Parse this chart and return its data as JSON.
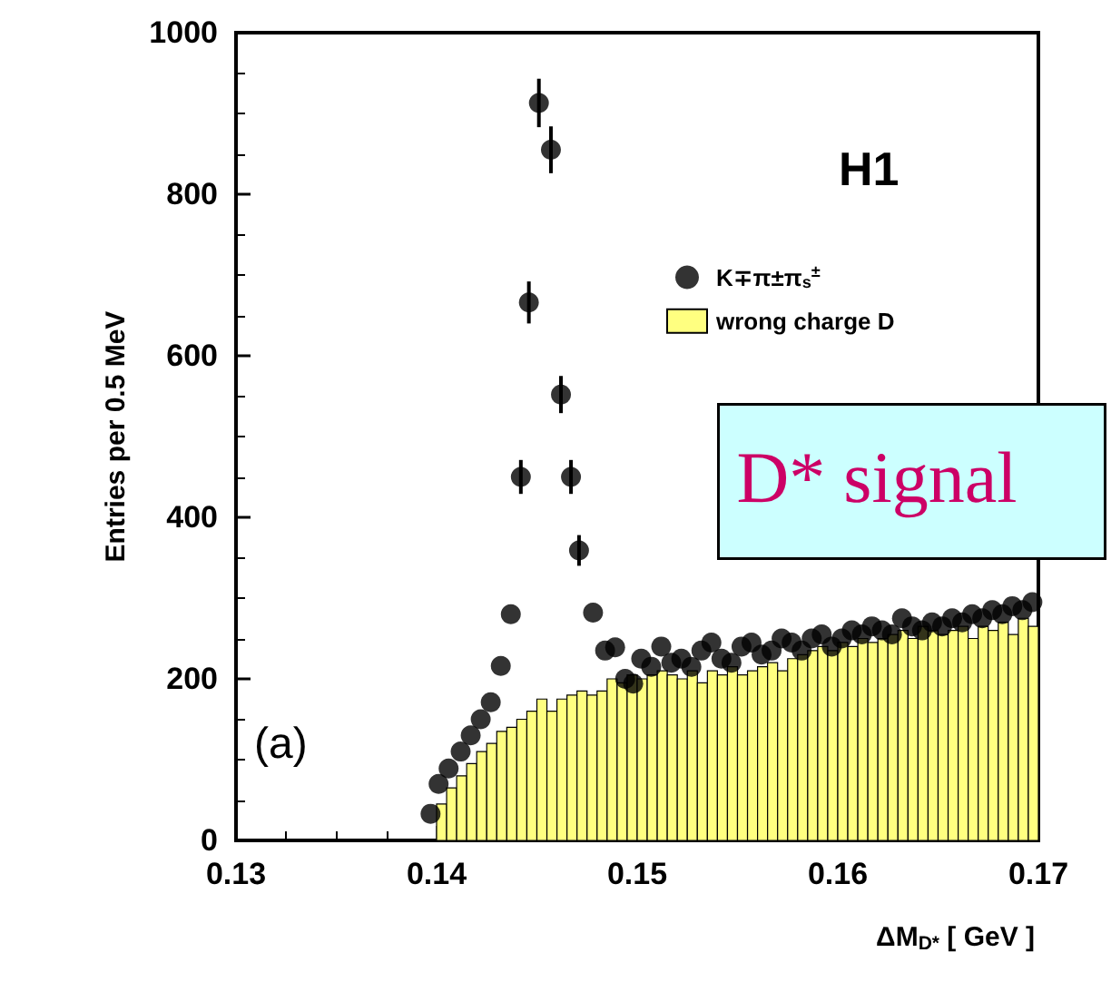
{
  "chart_data": {
    "type": "scatter",
    "xlabel": "ΔM$_{D*}$ [ GeV ]",
    "ylabel": "Entries per 0.5 MeV",
    "annotations": [
      "H1",
      "(a)",
      "D* signal"
    ],
    "xlim": [
      0.13,
      0.17
    ],
    "xticks": [
      0.13,
      0.14,
      0.15,
      0.16,
      0.17
    ],
    "ylim": [
      0,
      1000
    ],
    "yticks": [
      0,
      200,
      400,
      600,
      800,
      1000
    ],
    "grid": false,
    "legend": "top right",
    "marker": "circle",
    "series": [
      {
        "name": "K∓π±π$_{s}$$^{±}$",
        "color": "#000000",
        "x": [
          0.1397,
          0.1401,
          0.1406,
          0.1412,
          0.1417,
          0.1422,
          0.1427,
          0.1432,
          0.1437,
          0.1442,
          0.1446,
          0.1451,
          0.1457,
          0.1462,
          0.1467,
          0.1471,
          0.1478,
          0.1484,
          0.1489,
          0.1494,
          0.1498,
          0.1502,
          0.1507,
          0.1512,
          0.1517,
          0.1522,
          0.1527,
          0.1532,
          0.1537,
          0.1542,
          0.1547,
          0.1552,
          0.1557,
          0.1562,
          0.1567,
          0.1572,
          0.1577,
          0.1582,
          0.1587,
          0.1592,
          0.1597,
          0.1602,
          0.1607,
          0.1612,
          0.1617,
          0.1622,
          0.1627,
          0.1632,
          0.1637,
          0.1642,
          0.1647,
          0.1652,
          0.1657,
          0.1662,
          0.1667,
          0.1672,
          0.1677,
          0.1682,
          0.1687,
          0.1692,
          0.1697
        ],
        "values": [
          33,
          70,
          89,
          110,
          130,
          150,
          171,
          216,
          280,
          450,
          666,
          913,
          855,
          552,
          450,
          359,
          282,
          235,
          239,
          200,
          194,
          225,
          215,
          240,
          220,
          225,
          215,
          235,
          245,
          225,
          220,
          240,
          245,
          230,
          235,
          250,
          245,
          235,
          250,
          255,
          240,
          250,
          260,
          255,
          265,
          260,
          255,
          275,
          265,
          260,
          270,
          265,
          275,
          270,
          280,
          275,
          285,
          280,
          290,
          285,
          295
        ],
        "errors": [
          null,
          null,
          null,
          null,
          null,
          null,
          null,
          null,
          null,
          21,
          26,
          30,
          29,
          23,
          21,
          19,
          null,
          null,
          null,
          null,
          null,
          null,
          null,
          null,
          null,
          null,
          null,
          null,
          null,
          null,
          null,
          null,
          null,
          null,
          null,
          null,
          null,
          null,
          null,
          null,
          null,
          null,
          null,
          null,
          null,
          null,
          null,
          null,
          null,
          null,
          null,
          null,
          null,
          null,
          null,
          null,
          null,
          null,
          null,
          null,
          null
        ]
      },
      {
        "type": "histogram",
        "name": "wrong charge D",
        "color": "#ffff80",
        "bins": [
          0.14,
          0.1405,
          0.141,
          0.1415,
          0.142,
          0.1425,
          0.143,
          0.1435,
          0.144,
          0.1445,
          0.145,
          0.1455,
          0.146,
          0.1465,
          0.147,
          0.1475,
          0.148,
          0.1485,
          0.149,
          0.1495,
          0.15,
          0.1505,
          0.151,
          0.1515,
          0.152,
          0.1525,
          0.153,
          0.1535,
          0.154,
          0.1545,
          0.155,
          0.1555,
          0.156,
          0.1565,
          0.157,
          0.1575,
          0.158,
          0.1585,
          0.159,
          0.1595,
          0.16,
          0.1605,
          0.161,
          0.1615,
          0.162,
          0.1625,
          0.163,
          0.1635,
          0.164,
          0.1645,
          0.165,
          0.1655,
          0.166,
          0.1665,
          0.167,
          0.1675,
          0.168,
          0.1685,
          0.169,
          0.1695,
          0.17
        ],
        "values": [
          45,
          65,
          80,
          95,
          110,
          120,
          135,
          140,
          150,
          160,
          175,
          160,
          175,
          180,
          185,
          180,
          185,
          200,
          195,
          205,
          200,
          205,
          210,
          205,
          200,
          210,
          195,
          210,
          205,
          215,
          205,
          210,
          215,
          220,
          210,
          225,
          230,
          235,
          240,
          235,
          245,
          240,
          250,
          245,
          250,
          255,
          260,
          250,
          265,
          260,
          255,
          260,
          265,
          250,
          265,
          260,
          270,
          255,
          275,
          265
        ]
      }
    ]
  }
}
